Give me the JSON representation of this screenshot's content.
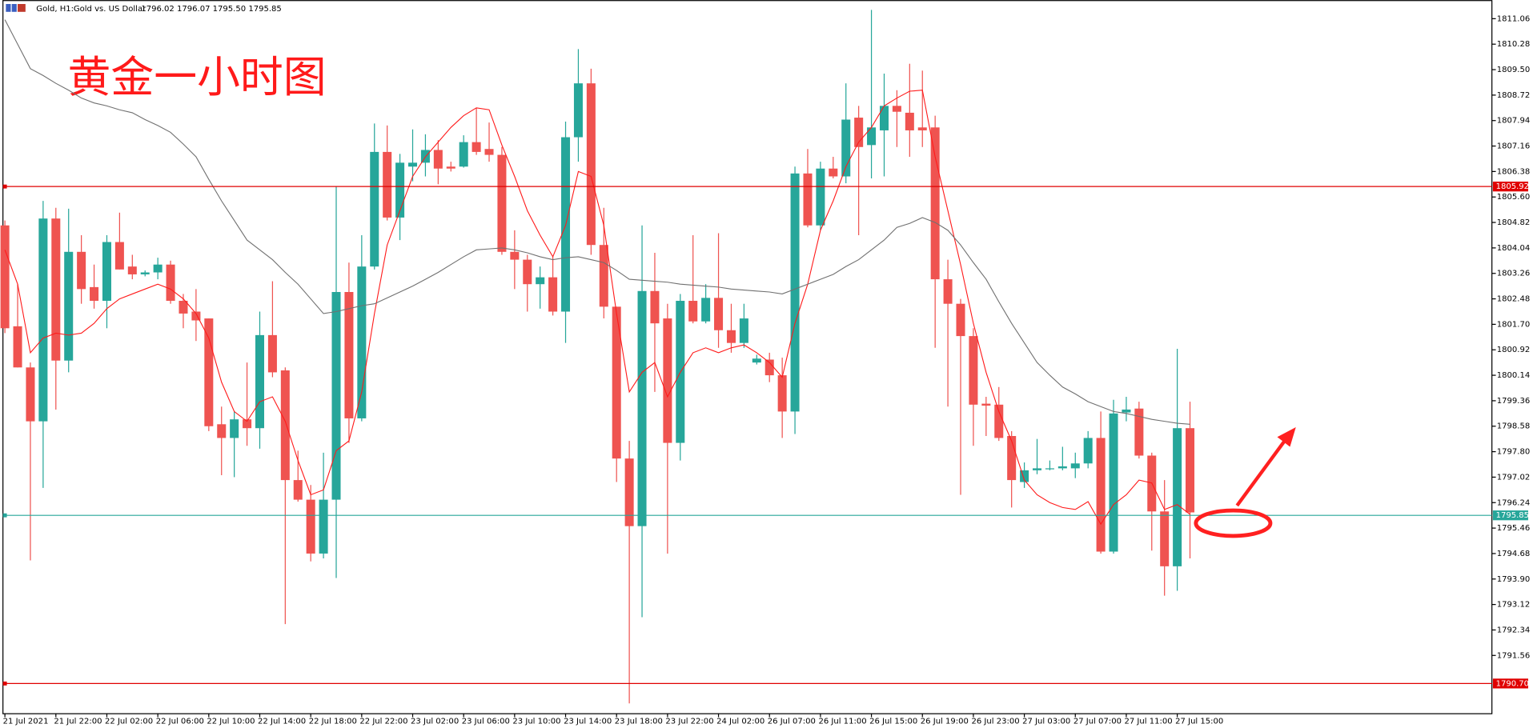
{
  "chart_data": {
    "type": "candlestick",
    "header": {
      "symbol": "Gold, H1:",
      "description": "Gold vs. US Dollar",
      "quote": "1796.02 1796.07 1795.50 1795.85"
    },
    "annotation": "黄金一小时图",
    "x": [
      "21 Jul 2021",
      null,
      null,
      null,
      "21 Jul 22:00",
      null,
      null,
      null,
      "22 Jul 02:00",
      null,
      null,
      null,
      "22 Jul 06:00",
      null,
      null,
      null,
      "22 Jul 10:00",
      null,
      null,
      null,
      "22 Jul 14:00",
      null,
      null,
      null,
      "22 Jul 18:00",
      null,
      null,
      null,
      "22 Jul 22:00",
      null,
      null,
      null,
      "23 Jul 02:00",
      null,
      null,
      null,
      "23 Jul 06:00",
      null,
      null,
      null,
      "23 Jul 10:00",
      null,
      null,
      null,
      "23 Jul 14:00",
      null,
      null,
      null,
      "23 Jul 18:00",
      null,
      null,
      null,
      "23 Jul 22:00",
      null,
      null,
      null,
      "24 Jul 02:00",
      null,
      null,
      null,
      "26 Jul 07:00",
      null,
      null,
      null,
      "26 Jul 11:00",
      null,
      null,
      null,
      "26 Jul 15:00",
      null,
      null,
      null,
      "26 Jul 19:00",
      null,
      null,
      null,
      "26 Jul 23:00",
      null,
      null,
      null,
      "27 Jul 03:00",
      null,
      null,
      null,
      "27 Jul 07:00",
      null,
      null,
      null,
      "27 Jul 11:00",
      null,
      null,
      null,
      "27 Jul 15:00",
      null
    ],
    "open": [
      1804.73,
      1801.64,
      1800.38,
      1798.73,
      1804.94,
      1800.59,
      1803.92,
      1802.84,
      1802.42,
      1804.22,
      1803.47,
      1803.23,
      1803.29,
      1803.53,
      1802.42,
      1802.09,
      1801.88,
      1798.64,
      1798.22,
      1798.79,
      1798.52,
      1801.37,
      1800.29,
      1796.93,
      1796.33,
      1794.68,
      1796.33,
      1802.69,
      1798.82,
      1803.47,
      1806.98,
      1804.97,
      1806.53,
      1806.65,
      1807.04,
      1806.53,
      1806.53,
      1807.28,
      1807.07,
      1806.89,
      1803.92,
      1803.68,
      1802.93,
      1803.14,
      1802.09,
      1807.43,
      1809.08,
      1804.13,
      1802.24,
      1797.59,
      1795.52,
      1802.72,
      1801.88,
      1798.07,
      1802.42,
      1801.79,
      1802.51,
      1801.52,
      1801.13,
      1800.53,
      1800.62,
      1800.14,
      1799.03,
      1806.32,
      1804.73,
      1806.47,
      1806.23,
      1808.03,
      1807.19,
      1807.64,
      1808.39,
      1808.18,
      1807.73,
      1807.73,
      1803.08,
      1802.33,
      1801.34,
      1799.27,
      1799.24,
      1798.28,
      1796.87,
      1797.23,
      1797.29,
      1797.29,
      1797.29,
      1797.44,
      1798.22,
      1794.74,
      1799.0,
      1799.12,
      1797.68,
      1795.97,
      1794.29,
      1798.52
    ],
    "high": [
      1804.88,
      1802.93,
      1800.53,
      1805.48,
      1805.27,
      1805.24,
      1804.43,
      1803.53,
      1804.43,
      1805.12,
      1803.83,
      1803.35,
      1803.74,
      1803.65,
      1802.63,
      1802.78,
      1801.88,
      1799.18,
      1799.03,
      1800.53,
      1802.09,
      1803.02,
      1800.38,
      1797.83,
      1796.78,
      1797.77,
      1805.93,
      1803.59,
      1804.43,
      1807.85,
      1807.79,
      1806.92,
      1807.67,
      1807.52,
      1807.34,
      1806.68,
      1807.49,
      1808.33,
      1807.88,
      1807.13,
      1804.58,
      1803.83,
      1803.47,
      1803.77,
      1807.91,
      1810.13,
      1809.53,
      1805.27,
      1802.24,
      1798.13,
      1804.73,
      1803.89,
      1802.33,
      1802.63,
      1804.43,
      1802.93,
      1804.49,
      1802.33,
      1802.33,
      1800.77,
      1800.83,
      1800.68,
      1806.53,
      1807.07,
      1806.68,
      1806.83,
      1809.08,
      1808.39,
      1811.33,
      1809.38,
      1808.87,
      1809.68,
      1809.47,
      1808.09,
      1803.68,
      1802.48,
      1801.58,
      1799.48,
      1799.78,
      1798.43,
      1797.47,
      1798.19,
      1797.53,
      1797.95,
      1797.77,
      1798.43,
      1799.03,
      1799.39,
      1799.48,
      1799.33,
      1797.77,
      1796.93,
      1800.95,
      1799.33
    ],
    "low": [
      1801.43,
      1800.38,
      1794.47,
      1796.69,
      1799.09,
      1800.23,
      1802.33,
      1802.18,
      1801.58,
      1803.38,
      1803.08,
      1803.17,
      1803.08,
      1802.33,
      1801.58,
      1801.19,
      1798.43,
      1797.08,
      1797.02,
      1797.98,
      1797.89,
      1800.08,
      1792.52,
      1796.27,
      1794.44,
      1794.53,
      1793.93,
      1798.07,
      1798.73,
      1803.38,
      1804.88,
      1804.28,
      1806.08,
      1806.23,
      1805.99,
      1806.38,
      1806.5,
      1806.89,
      1806.68,
      1803.83,
      1802.78,
      1802.09,
      1802.18,
      1801.97,
      1801.13,
      1806.68,
      1803.83,
      1801.88,
      1796.87,
      1790.09,
      1792.73,
      1799.63,
      1794.68,
      1797.53,
      1801.73,
      1801.73,
      1800.98,
      1800.83,
      1800.98,
      1800.47,
      1799.93,
      1798.22,
      1798.34,
      1804.67,
      1804.58,
      1806.17,
      1806.02,
      1804.43,
      1806.17,
      1806.23,
      1807.13,
      1806.83,
      1807.13,
      1800.98,
      1799.18,
      1796.48,
      1797.98,
      1798.28,
      1798.13,
      1796.09,
      1796.69,
      1797.11,
      1797.23,
      1797.23,
      1796.99,
      1797.29,
      1794.68,
      1794.68,
      1798.73,
      1797.59,
      1794.77,
      1793.39,
      1793.54,
      1794.53
    ],
    "close": [
      1801.58,
      1800.38,
      1798.73,
      1804.94,
      1800.59,
      1803.92,
      1802.78,
      1802.42,
      1804.22,
      1803.38,
      1803.23,
      1803.29,
      1803.53,
      1802.42,
      1802.03,
      1801.82,
      1798.58,
      1798.22,
      1798.79,
      1798.52,
      1801.37,
      1800.23,
      1796.93,
      1796.33,
      1794.68,
      1796.33,
      1802.69,
      1798.82,
      1803.47,
      1806.98,
      1804.97,
      1806.65,
      1806.65,
      1807.04,
      1806.47,
      1806.47,
      1807.28,
      1806.98,
      1806.89,
      1803.92,
      1803.68,
      1802.93,
      1803.14,
      1802.09,
      1807.43,
      1809.08,
      1804.13,
      1802.24,
      1797.59,
      1795.52,
      1802.72,
      1801.73,
      1798.07,
      1802.42,
      1801.79,
      1802.51,
      1801.52,
      1801.13,
      1801.88,
      1800.65,
      1800.14,
      1799.03,
      1806.32,
      1804.73,
      1806.47,
      1806.23,
      1807.97,
      1807.13,
      1807.73,
      1808.39,
      1808.21,
      1807.64,
      1807.64,
      1803.08,
      1802.33,
      1801.34,
      1799.24,
      1799.21,
      1798.22,
      1796.93,
      1797.23,
      1797.29,
      1797.29,
      1797.35,
      1797.44,
      1798.22,
      1794.74,
      1798.97,
      1799.09,
      1797.68,
      1795.97,
      1794.29,
      1798.52,
      1795.94
    ],
    "up_color": "#26a69a",
    "down_color": "#ef5350",
    "lines": [
      {
        "color": "#ff1a1a",
        "values": [
          1803.98,
          1802.93,
          1800.83,
          1801.28,
          1801.43,
          1801.37,
          1801.43,
          1801.73,
          1802.18,
          1802.48,
          1802.63,
          1802.78,
          1802.93,
          1802.78,
          1802.48,
          1802.03,
          1801.28,
          1799.93,
          1799.03,
          1798.73,
          1799.33,
          1799.48,
          1798.73,
          1797.53,
          1796.48,
          1796.63,
          1797.83,
          1798.13,
          1799.63,
          1802.03,
          1804.13,
          1805.18,
          1806.23,
          1806.83,
          1807.28,
          1807.73,
          1808.09,
          1808.33,
          1808.27,
          1807.19,
          1806.23,
          1805.18,
          1804.43,
          1803.77,
          1804.73,
          1806.38,
          1806.23,
          1804.73,
          1802.03,
          1799.63,
          1800.23,
          1800.53,
          1799.48,
          1800.23,
          1800.83,
          1800.98,
          1800.83,
          1800.98,
          1801.07,
          1800.83,
          1800.53,
          1800.08,
          1801.73,
          1802.93,
          1804.58,
          1805.48,
          1806.53,
          1807.28,
          1807.73,
          1808.39,
          1808.63,
          1808.84,
          1808.87,
          1806.83,
          1805.18,
          1803.53,
          1801.73,
          1800.23,
          1799.03,
          1798.13,
          1796.93,
          1796.48,
          1796.24,
          1796.09,
          1796.03,
          1796.27,
          1795.58,
          1796.18,
          1796.48,
          1796.93,
          1796.84,
          1796.03,
          1796.18,
          1795.88
        ]
      },
      {
        "color": "#707070",
        "values": [
          1811.03,
          1810.28,
          1809.53,
          1809.32,
          1809.08,
          1808.87,
          1808.63,
          1808.48,
          1808.39,
          1808.27,
          1808.18,
          1807.97,
          1807.79,
          1807.58,
          1807.22,
          1806.83,
          1806.14,
          1805.48,
          1804.88,
          1804.28,
          1803.98,
          1803.68,
          1803.29,
          1802.93,
          1802.48,
          1802.03,
          1802.09,
          1802.18,
          1802.27,
          1802.33,
          1802.51,
          1802.69,
          1802.87,
          1803.08,
          1803.29,
          1803.53,
          1803.77,
          1803.98,
          1804.01,
          1804.04,
          1803.98,
          1803.89,
          1803.77,
          1803.68,
          1803.74,
          1803.77,
          1803.68,
          1803.59,
          1803.35,
          1803.08,
          1803.05,
          1803.02,
          1802.99,
          1802.93,
          1802.9,
          1802.87,
          1802.84,
          1802.78,
          1802.75,
          1802.72,
          1802.69,
          1802.63,
          1802.78,
          1802.93,
          1803.08,
          1803.23,
          1803.47,
          1803.68,
          1803.98,
          1804.28,
          1804.67,
          1804.79,
          1804.97,
          1804.82,
          1804.58,
          1804.13,
          1803.59,
          1803.08,
          1802.39,
          1801.73,
          1801.13,
          1800.53,
          1800.14,
          1799.78,
          1799.57,
          1799.33,
          1799.18,
          1799.03,
          1798.97,
          1798.88,
          1798.79,
          1798.73,
          1798.67,
          1798.64
        ]
      }
    ],
    "levels": [
      {
        "value": 1805.92,
        "color": "#e00000"
      },
      {
        "value": 1790.7,
        "label": "1790.70",
        "color": "#e00000"
      },
      {
        "value": 1795.85,
        "color": "#26a69a"
      }
    ],
    "ylim": [
      1789.79,
      1811.63
    ],
    "yticks": [
      1811.06,
      1810.28,
      {
        "value": 1809.5,
        "label": "1809.50"
      },
      1808.72,
      1807.94,
      1807.16,
      1806.38,
      {
        "value": 1805.6,
        "label": "1805.60"
      },
      1804.82,
      1804.04,
      1803.26,
      1802.48,
      {
        "value": 1801.7,
        "label": "1801.70"
      },
      1800.92,
      1800.14,
      1799.36,
      1798.58,
      {
        "value": 1797.8,
        "label": "1797.80"
      },
      1797.02,
      1796.24,
      1795.46,
      1794.68,
      {
        "value": 1793.9,
        "label": "1793.90"
      },
      1793.12,
      1792.34,
      1791.56
    ]
  }
}
